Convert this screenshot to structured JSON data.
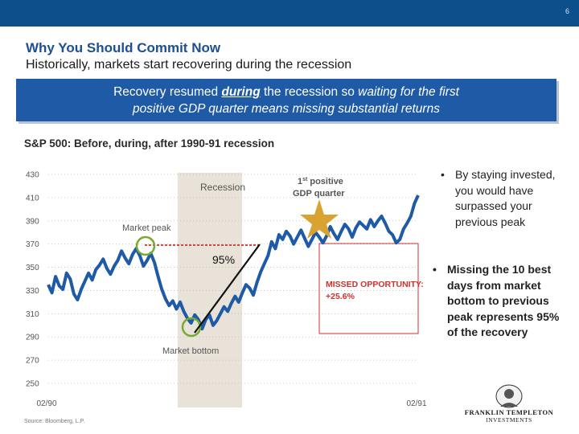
{
  "slide_number": "6",
  "title": "Why You Should Commit Now",
  "subtitle": "Historically, markets start recovering during the recession",
  "callout": {
    "line1_a": "Recovery resumed ",
    "line1_b": "during",
    "line1_c": " the recession so ",
    "line1_d": "waiting for the first",
    "line2": "positive GDP quarter means missing substantial returns"
  },
  "chart_title": "S&P 500: Before, during, after 1990-91 recession",
  "chart_data": {
    "type": "line",
    "title": "S&P 500: Before, during, after 1990-91 recession",
    "x_start_label": "02/90",
    "x_end_label": "02/91",
    "ylim": [
      250,
      430
    ],
    "yticks": [
      430,
      410,
      390,
      370,
      350,
      330,
      310,
      290,
      270,
      250
    ],
    "series": [
      {
        "name": "S&P 500",
        "values": [
          335,
          328,
          342,
          334,
          331,
          345,
          340,
          327,
          322,
          331,
          338,
          345,
          339,
          348,
          352,
          357,
          349,
          344,
          351,
          356,
          364,
          358,
          353,
          361,
          366,
          360,
          351,
          356,
          362,
          354,
          342,
          331,
          323,
          317,
          321,
          314,
          320,
          312,
          306,
          302,
          309,
          305,
          297,
          305,
          309,
          300,
          304,
          310,
          316,
          312,
          319,
          325,
          320,
          328,
          335,
          332,
          326,
          337,
          346,
          353,
          360,
          372,
          366,
          378,
          374,
          381,
          377,
          370,
          376,
          382,
          375,
          368,
          374,
          380,
          376,
          371,
          377,
          385,
          379,
          374,
          381,
          387,
          383,
          376,
          384,
          389,
          386,
          383,
          391,
          385,
          390,
          394,
          388,
          381,
          378,
          371,
          374,
          383,
          388,
          394,
          405,
          412
        ]
      }
    ],
    "recession_label": "Recession",
    "market_peak_label": "Market peak",
    "market_bottom_label": "Market bottom",
    "gdp_label_num": "1",
    "gdp_label_sup": "st",
    "gdp_label_line1": "positive",
    "gdp_label_line2": "GDP quarter",
    "missed_line1": "MISSED OPPORTUNITY:",
    "missed_line2": "+25.6%",
    "recovery_label": "95%"
  },
  "bullets": [
    "By staying invested, you would have surpassed your previous peak",
    "Missing the 10 best days from market bottom to previous peak represents 95% of the recovery"
  ],
  "source": "Source: Bloomberg, L.P.",
  "logo": {
    "line1": "FRANKLIN TEMPLETON",
    "line2": "INVESTMENTS"
  },
  "colors": {
    "brand_blue": "#0d4f8b",
    "line": "#1e5aa6",
    "highlight_red": "#d0312d",
    "green_circle": "#7aa832",
    "star": "#d9a332",
    "recession_shade": "#e8e2d8"
  }
}
